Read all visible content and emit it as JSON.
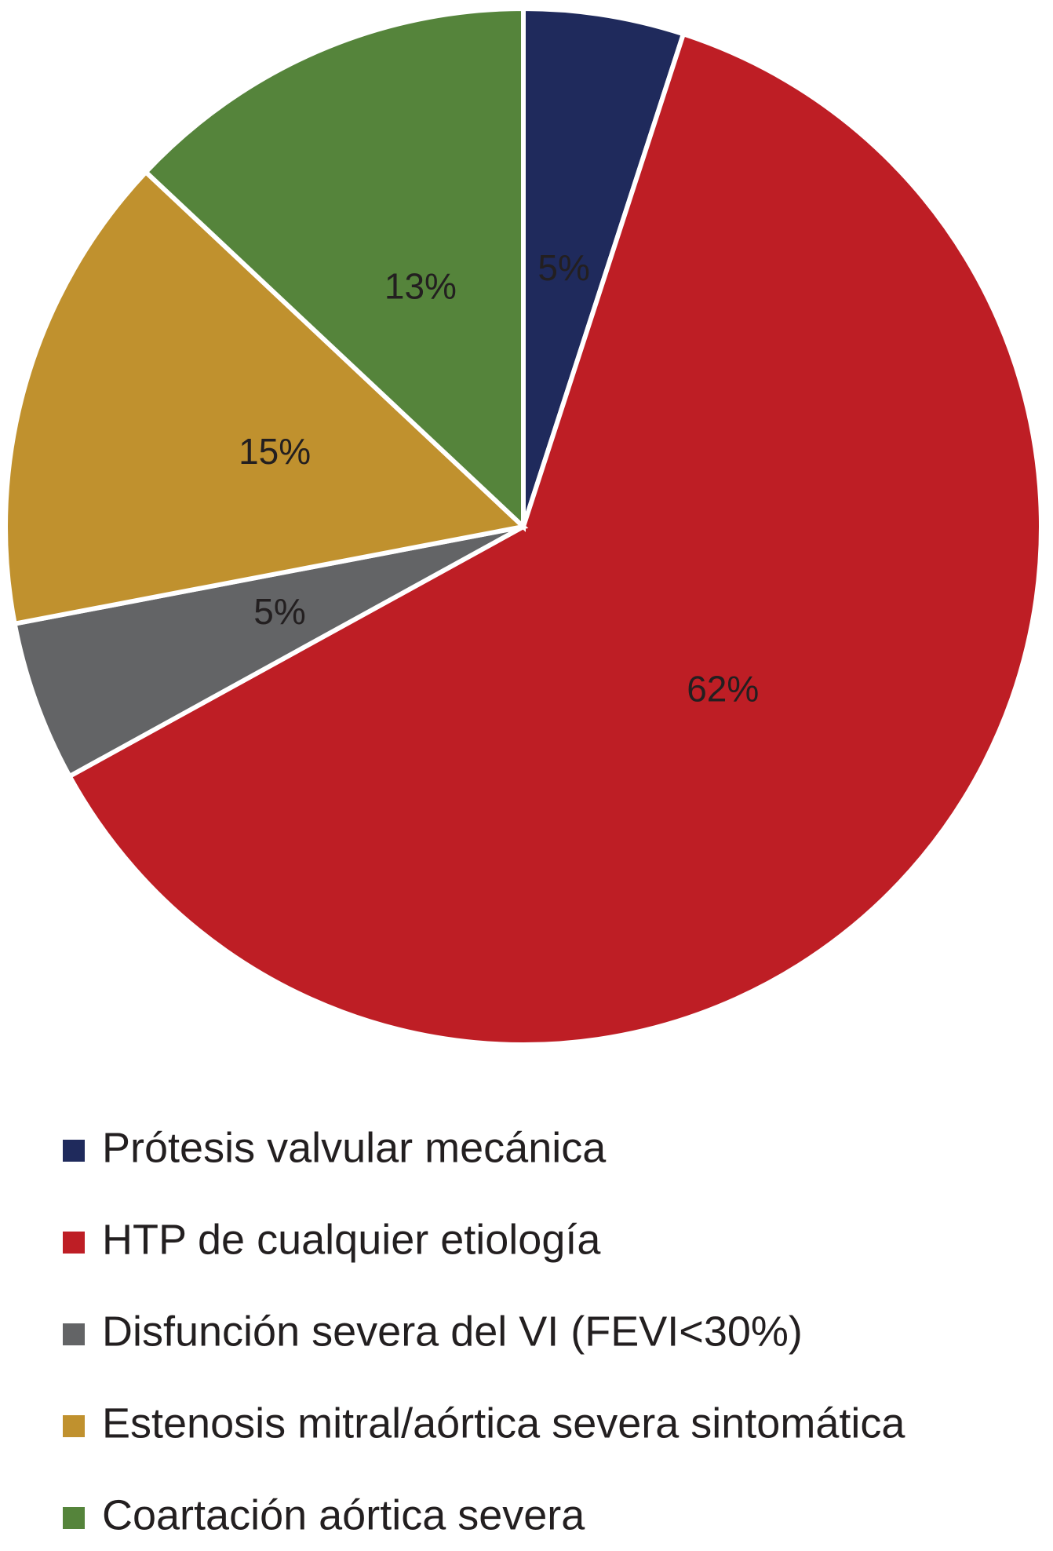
{
  "chart_data": {
    "type": "pie",
    "categories": [
      "Prótesis valvular mecánica",
      "HTP de cualquier etiología",
      "Disfunción severa del VI (FEVI<30%)",
      "Estenosis mitral/aórtica severa sintomática",
      "Coartación aórtica severa"
    ],
    "values": [
      5,
      62,
      5,
      15,
      13
    ],
    "value_labels": [
      "5%",
      "62%",
      "5%",
      "15%",
      "13%"
    ],
    "colors": [
      "#1f2a5c",
      "#be1e25",
      "#636466",
      "#c0912e",
      "#55843b"
    ]
  }
}
